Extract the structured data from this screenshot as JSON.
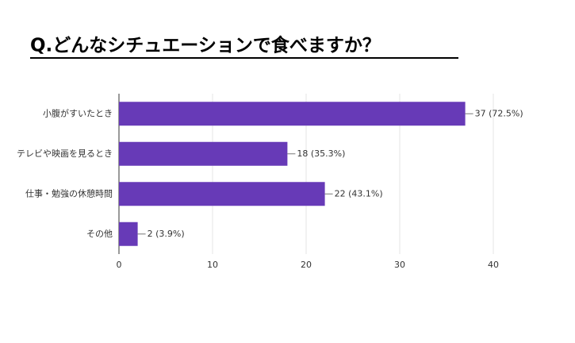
{
  "chart_data": {
    "type": "bar",
    "orientation": "horizontal",
    "title": "Q.どんなシチュエーションで食べますか？",
    "categories": [
      "小腹がすいたとき",
      "テレビや映画を見るとき",
      "仕事・勉強の休憩時間",
      "その他"
    ],
    "values": [
      37,
      18,
      22,
      2
    ],
    "value_labels": [
      "37 (72.5%)",
      "18 (35.3%)",
      "22 (43.1%)",
      "2 (3.9%)"
    ],
    "color": "#673ab7",
    "xlim": [
      0,
      40
    ],
    "xticks": [
      0,
      10,
      20,
      30,
      40
    ],
    "grid": true
  }
}
